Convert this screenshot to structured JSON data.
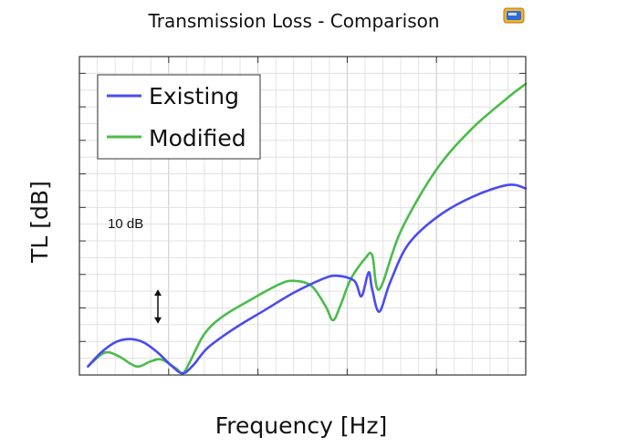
{
  "chart_data": {
    "type": "line",
    "title": "Transmission Loss - Comparison",
    "xlabel": "Frequency [Hz]",
    "ylabel": "TL [dB]",
    "annotation": "10 dB",
    "annotation_y": [
      15,
      25
    ],
    "xlim": [
      0,
      6.25
    ],
    "ylim": [
      0,
      93
    ],
    "grid": true,
    "legend": "top-left",
    "series": [
      {
        "name": "Existing",
        "color": "#4b4bf0",
        "x": [
          0.12,
          0.3,
          0.5,
          0.7,
          0.9,
          1.1,
          1.3,
          1.45,
          1.6,
          1.8,
          2.2,
          2.6,
          3.0,
          3.4,
          3.6,
          3.85,
          3.95,
          4.05,
          4.1,
          4.2,
          4.35,
          4.6,
          5.0,
          5.5,
          6.0,
          6.25
        ],
        "values": [
          2.5,
          6.5,
          9.5,
          10.5,
          9.5,
          6.5,
          2.5,
          0.5,
          3,
          8,
          14,
          19,
          24,
          28,
          29,
          27.5,
          23,
          30,
          25,
          18.5,
          27,
          38,
          46,
          52,
          55.5,
          54.5
        ]
      },
      {
        "name": "Modified",
        "color": "#4cbb4c",
        "x": [
          0.12,
          0.35,
          0.55,
          0.8,
          1.0,
          1.15,
          1.35,
          1.45,
          1.55,
          1.75,
          2.0,
          2.4,
          2.8,
          3.0,
          3.25,
          3.45,
          3.55,
          3.65,
          3.8,
          4.0,
          4.1,
          4.2,
          4.5,
          5.0,
          5.5,
          6.0,
          6.25
        ],
        "values": [
          2.5,
          6.5,
          5.5,
          2.5,
          4,
          4.5,
          2,
          0.5,
          4,
          12,
          17,
          22,
          26.5,
          27.5,
          26,
          20,
          16,
          20,
          28,
          34,
          35,
          25,
          42,
          60,
          72,
          81,
          85
        ]
      }
    ]
  }
}
